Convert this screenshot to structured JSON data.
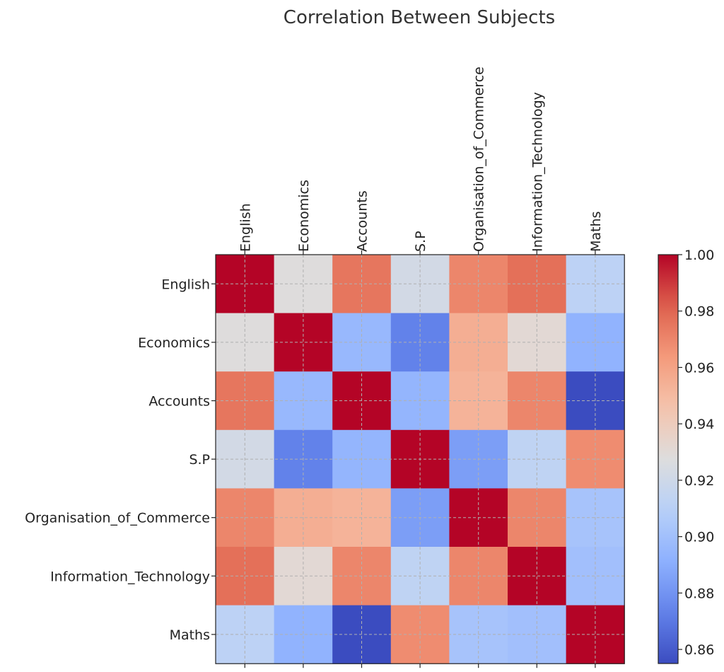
{
  "chart_data": {
    "type": "heatmap",
    "title": "Correlation Between Subjects",
    "x_labels": [
      "English",
      "Economics",
      "Accounts",
      "S.P",
      "Organisation_of_Commerce",
      "Information_Technology",
      "Maths"
    ],
    "y_labels": [
      "English",
      "Economics",
      "Accounts",
      "S.P",
      "Organisation_of_Commerce",
      "Information_Technology",
      "Maths"
    ],
    "matrix": [
      [
        1.0,
        0.928,
        0.975,
        0.922,
        0.97,
        0.977,
        0.912
      ],
      [
        0.928,
        1.0,
        0.896,
        0.873,
        0.955,
        0.931,
        0.893
      ],
      [
        0.975,
        0.896,
        1.0,
        0.894,
        0.953,
        0.97,
        0.855
      ],
      [
        0.922,
        0.873,
        0.894,
        1.0,
        0.884,
        0.913,
        0.968
      ],
      [
        0.97,
        0.955,
        0.953,
        0.884,
        1.0,
        0.97,
        0.902
      ],
      [
        0.977,
        0.931,
        0.97,
        0.913,
        0.97,
        1.0,
        0.9
      ],
      [
        0.912,
        0.893,
        0.855,
        0.968,
        0.902,
        0.9,
        1.0
      ]
    ],
    "colormap": "coolwarm",
    "colorbar": {
      "vmin": 0.855,
      "vmax": 1.0,
      "ticks": [
        0.86,
        0.88,
        0.9,
        0.92,
        0.94,
        0.96,
        0.98,
        1.0
      ],
      "tick_labels": [
        "0.86",
        "0.88",
        "0.90",
        "0.92",
        "0.94",
        "0.96",
        "0.98",
        "1.00"
      ]
    },
    "grid": true,
    "x_axis_position": "top",
    "colorbar_placement": "right"
  }
}
